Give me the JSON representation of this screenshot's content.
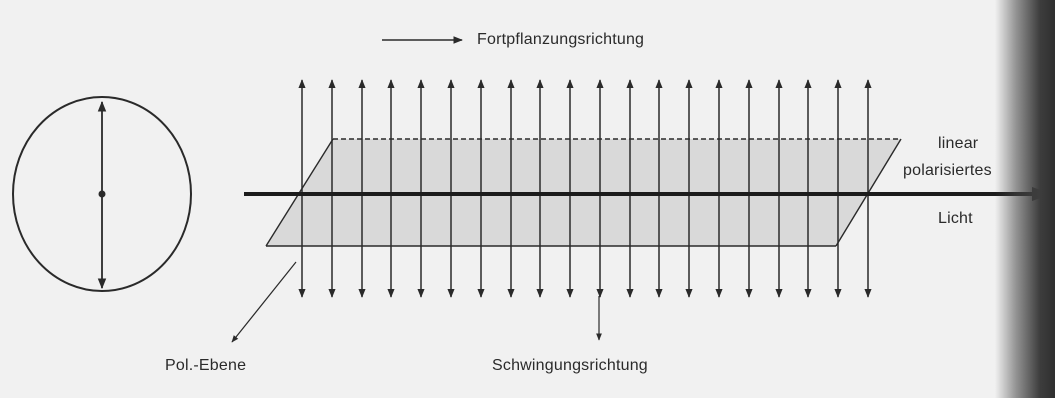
{
  "labels": {
    "propagation_direction": "Fortpflanzungsrichtung",
    "light_line1": "linear",
    "light_line2": "polarisiertes",
    "light_line3": "Licht",
    "polarization_plane": "Pol.-Ebene",
    "oscillation_direction": "Schwingungsrichtung"
  },
  "colors": {
    "ink": "#2a2a2a",
    "plane_fill": "#d9d9d9",
    "background": "#f1f1f1"
  },
  "oscillation_arrow_count": 20
}
